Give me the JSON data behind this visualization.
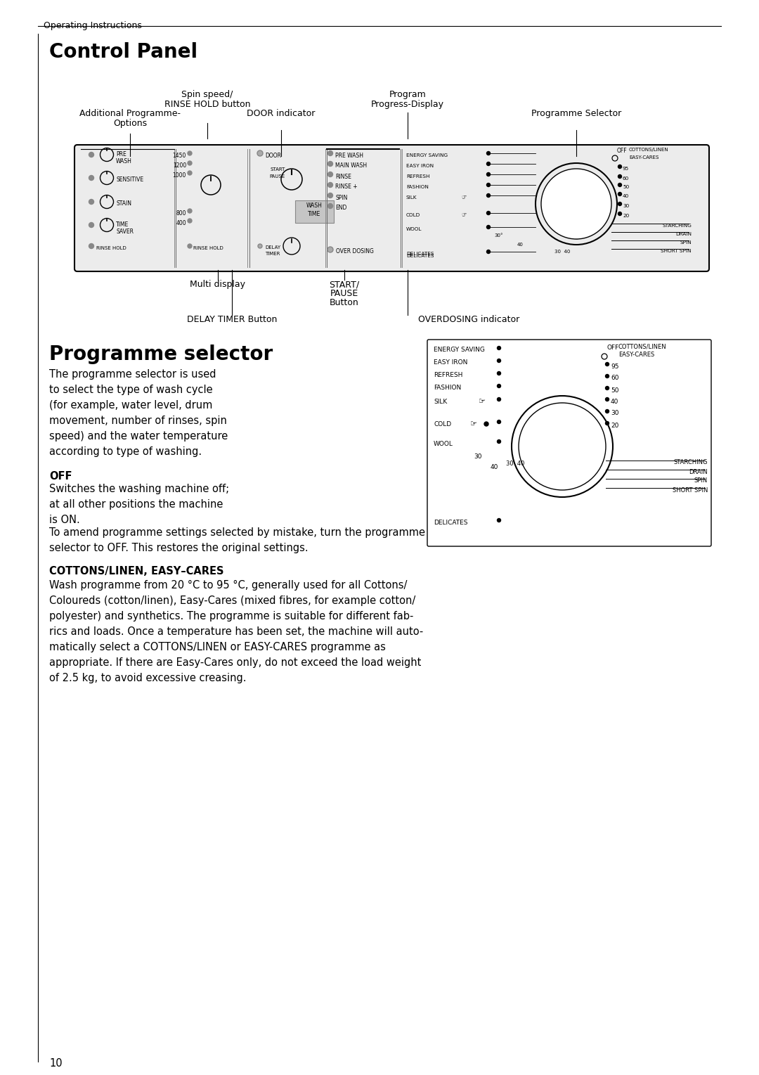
{
  "page_bg": "#ffffff",
  "header_text": "Operating Instructions",
  "title1": "Control Panel",
  "title2": "Programme selector",
  "body_text1_lines": [
    "The programme selector is used",
    "to select the type of wash cycle",
    "(for example, water level, drum",
    "movement, number of rinses, spin",
    "speed) and the water temperature",
    "according to type of washing."
  ],
  "off_heading": "OFF",
  "off_text_lines": [
    "Switches the washing machine off;",
    "at all other positions the machine",
    "is ON."
  ],
  "off_text2_lines": [
    "To amend programme settings selected by mistake, turn the programme",
    "selector to OFF. This restores the original settings."
  ],
  "cottons_heading": "COTTONS/LINEN, EASY–CARES",
  "cottons_text_lines": [
    "Wash programme from 20 °C to 95 °C, generally used for all Cottons/",
    "Coloureds (cotton/linen), Easy-Cares (mixed fibres, for example cotton/",
    "polyester) and synthetics. The programme is suitable for different fab-",
    "rics and loads. Once a temperature has been set, the machine will auto-",
    "matically select a COTTONS/LINEN or EASY-CARES programme as",
    "appropriate. If there are Easy-Cares only, do not exceed the load weight",
    "of 2.5 kg, to avoid excessive creasing."
  ],
  "page_number": "10",
  "spin_speed_label": [
    "Spin speed/",
    "RINSE HOLD button"
  ],
  "program_progress_label": [
    "Program",
    "Progress-Display"
  ],
  "additional_prog_label": [
    "Additional Programme-",
    "Options"
  ],
  "door_indicator_label": "DOOR indicator",
  "programme_selector_label": "Programme Selector",
  "multi_display_label": "Multi display",
  "start_pause_label": [
    "START/",
    "PAUSE",
    "Button"
  ],
  "delay_timer_label": "DELAY TIMER Button",
  "overdosing_label": "OVERDOSING indicator"
}
